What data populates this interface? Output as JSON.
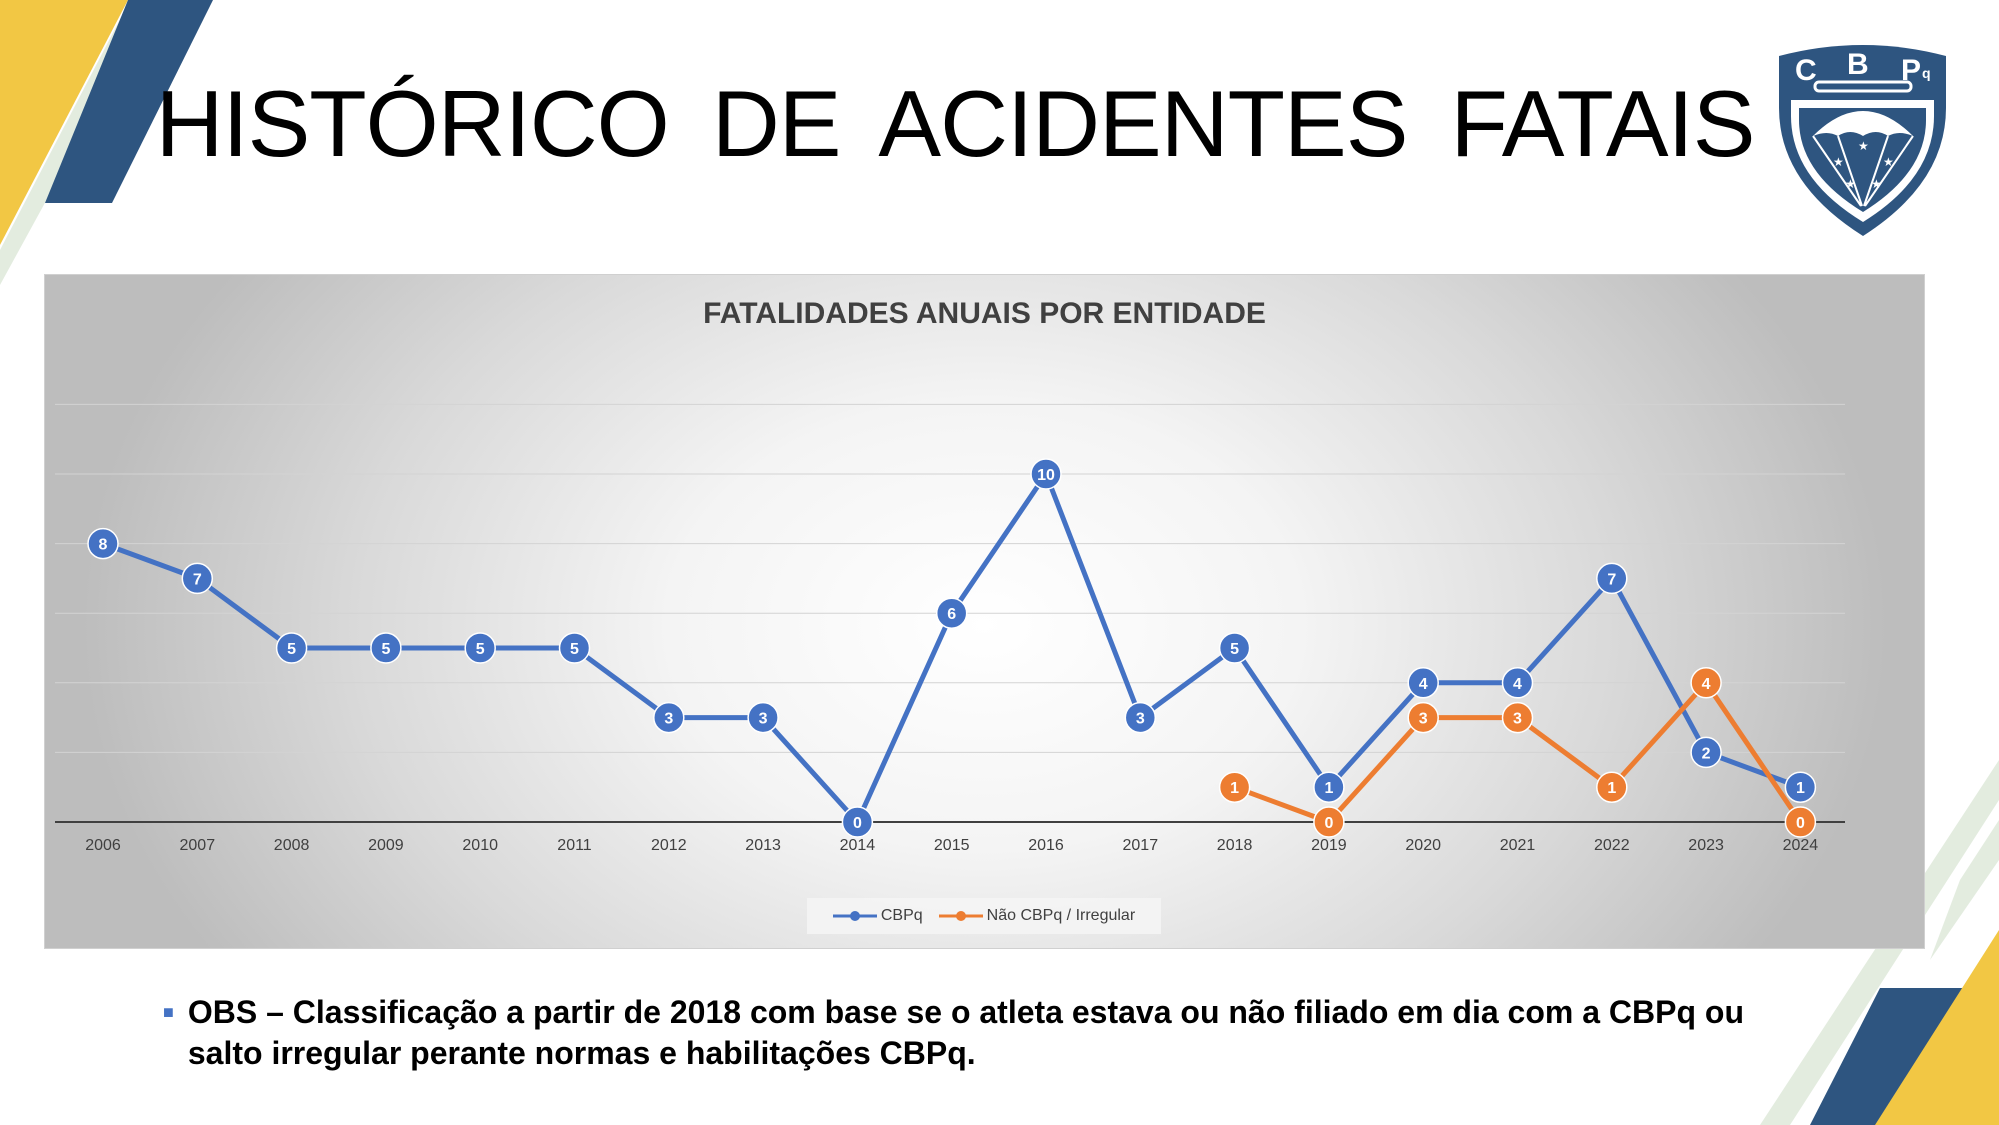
{
  "title": "HISTÓRICO  DE  ACIDENTES  FATAIS",
  "logo": {
    "letters": [
      "C",
      "B",
      "P",
      "q"
    ]
  },
  "chart_data": {
    "type": "line",
    "title": "FATALIDADES ANUAIS POR ENTIDADE",
    "xlabel": "",
    "ylabel": "",
    "categories": [
      "2006",
      "2007",
      "2008",
      "2009",
      "2010",
      "2011",
      "2012",
      "2013",
      "2014",
      "2015",
      "2016",
      "2017",
      "2018",
      "2019",
      "2020",
      "2021",
      "2022",
      "2023",
      "2024"
    ],
    "series": [
      {
        "name": "CBPq",
        "color": "#4472c4",
        "values": [
          8,
          7,
          5,
          5,
          5,
          5,
          3,
          3,
          0,
          6,
          10,
          3,
          5,
          1,
          4,
          4,
          7,
          2,
          1
        ]
      },
      {
        "name": "Não CBPq / Irregular",
        "color": "#ed7d31",
        "values": [
          null,
          null,
          null,
          null,
          null,
          null,
          null,
          null,
          null,
          null,
          null,
          null,
          1,
          0,
          3,
          3,
          1,
          4,
          0
        ]
      }
    ],
    "ylim": [
      0,
      12
    ],
    "grid": true,
    "legend_position": "bottom"
  },
  "note": {
    "text": "OBS – Classificação a partir de 2018 com base se o atleta estava ou não filiado em dia com a CBPq ou salto irregular perante normas e habilitações CBPq."
  },
  "colors": {
    "yellow": "#f2c744",
    "navy": "#2e5580",
    "pale_green": "#e3ecdf",
    "axis": "#404040"
  }
}
